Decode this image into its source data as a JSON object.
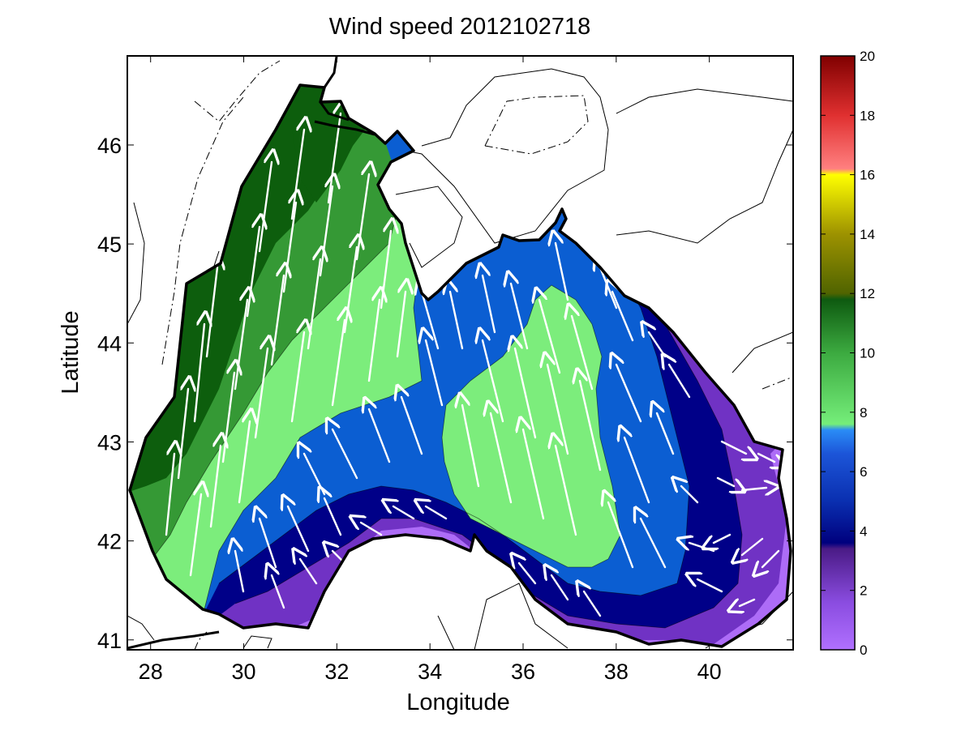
{
  "title": "Wind speed 2012102718",
  "xlabel": "Longitude",
  "ylabel": "Latitude",
  "map": {
    "region": "Black Sea",
    "lon_range": [
      27.5,
      41.8
    ],
    "lat_range": [
      40.9,
      46.9
    ],
    "x_ticks": [
      "28",
      "30",
      "32",
      "34",
      "36",
      "38",
      "40"
    ],
    "y_ticks": [
      "41",
      "42",
      "43",
      "44",
      "45",
      "46"
    ],
    "field": "wind speed",
    "overlay": "wind vectors (white arrows)",
    "land_contours": "sea level pressure isolines (black)"
  },
  "colorbar": {
    "min": 0,
    "max": 20,
    "tick_labels": [
      "0",
      "2",
      "4",
      "6",
      "8",
      "10",
      "12",
      "14",
      "16",
      "18",
      "20"
    ],
    "stops": [
      "#b070ff",
      "#7b34c8",
      "#4a1b86",
      "#00007e",
      "#1f3ec6",
      "#2a7cf4",
      "#75ee7a",
      "#2f9c32",
      "#0d540d",
      "#7a6a00",
      "#e0e000",
      "#ffff00",
      "#ff7070",
      "#d11414",
      "#800000"
    ]
  },
  "legend_colors": {
    "lavender": "#ad6cf7",
    "purple": "#7032c4",
    "navy": "#000088",
    "blue": "#0b5ed2",
    "light_green": "#7ced7c",
    "green": "#359935",
    "dark_green": "#0d5e0d",
    "arrow": "#ffffff"
  },
  "zones": [
    {
      "name": "dark green west",
      "speed_range": [
        10,
        12
      ]
    },
    {
      "name": "green west",
      "speed_range": [
        9,
        10
      ]
    },
    {
      "name": "light green band",
      "speed_range": [
        7.5,
        9
      ]
    },
    {
      "name": "blue central",
      "speed_range": [
        5,
        7.5
      ]
    },
    {
      "name": "light green east lobe",
      "speed_range": [
        7.5,
        9
      ]
    },
    {
      "name": "navy east",
      "speed_range": [
        3.5,
        5
      ]
    },
    {
      "name": "purple south-east",
      "speed_range": [
        1,
        3.5
      ]
    }
  ]
}
